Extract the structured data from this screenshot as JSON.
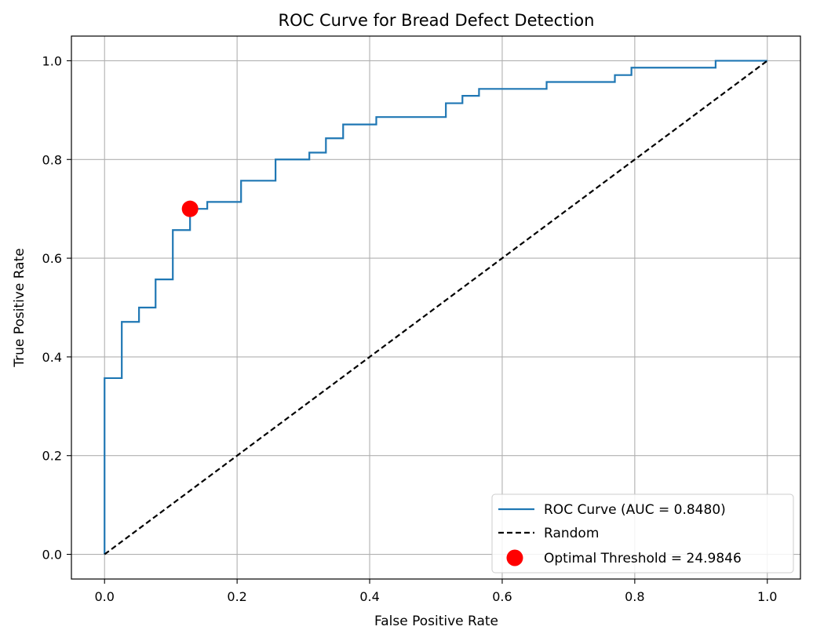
{
  "chart_data": {
    "type": "line",
    "title": "ROC Curve for Bread Defect Detection",
    "xlabel": "False Positive Rate",
    "ylabel": "True Positive Rate",
    "xlim": [
      -0.05,
      1.05
    ],
    "ylim": [
      -0.05,
      1.05
    ],
    "xticks": [
      0.0,
      0.2,
      0.4,
      0.6,
      0.8,
      1.0
    ],
    "xtick_labels": [
      "0.0",
      "0.2",
      "0.4",
      "0.6",
      "0.8",
      "1.0"
    ],
    "yticks": [
      0.0,
      0.2,
      0.4,
      0.6,
      0.8,
      1.0
    ],
    "ytick_labels": [
      "0.0",
      "0.2",
      "0.4",
      "0.6",
      "0.8",
      "1.0"
    ],
    "grid": true,
    "legend_position": "lower-right",
    "series": [
      {
        "name": "ROC Curve (AUC = 0.8480)",
        "color": "#1f77b4",
        "style": "step",
        "x": [
          0.0,
          0.0,
          0.026,
          0.026,
          0.052,
          0.052,
          0.077,
          0.077,
          0.103,
          0.103,
          0.129,
          0.129,
          0.155,
          0.155,
          0.206,
          0.206,
          0.258,
          0.258,
          0.309,
          0.309,
          0.334,
          0.334,
          0.36,
          0.36,
          0.41,
          0.41,
          0.515,
          0.515,
          0.54,
          0.54,
          0.565,
          0.565,
          0.667,
          0.667,
          0.77,
          0.77,
          0.795,
          0.795,
          0.922,
          0.922,
          1.0
        ],
        "y": [
          0.0,
          0.357,
          0.357,
          0.471,
          0.471,
          0.5,
          0.5,
          0.557,
          0.557,
          0.657,
          0.657,
          0.7,
          0.7,
          0.714,
          0.714,
          0.757,
          0.757,
          0.8,
          0.8,
          0.814,
          0.814,
          0.843,
          0.843,
          0.871,
          0.871,
          0.886,
          0.886,
          0.914,
          0.914,
          0.929,
          0.929,
          0.943,
          0.943,
          0.957,
          0.957,
          0.971,
          0.971,
          0.986,
          0.986,
          1.0,
          1.0
        ]
      },
      {
        "name": "Random",
        "color": "#000000",
        "style": "dashed",
        "x": [
          0.0,
          1.0
        ],
        "y": [
          0.0,
          1.0
        ]
      }
    ],
    "markers": [
      {
        "name": "Optimal Threshold = 24.9846",
        "color": "#ff0000",
        "x": 0.129,
        "y": 0.7
      }
    ]
  }
}
